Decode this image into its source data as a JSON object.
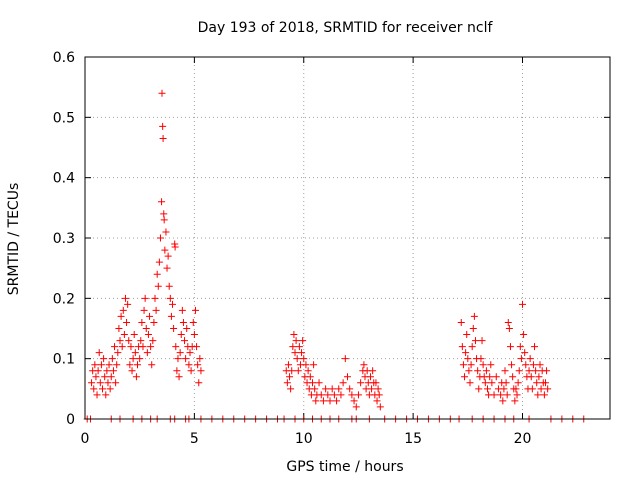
{
  "chart_data": {
    "type": "scatter",
    "title": "Day 193 of 2018, SRMTID for receiver nclf",
    "xlabel": "GPS time / hours",
    "ylabel": "SRMTID / TECUs",
    "xlim": [
      0,
      24
    ],
    "ylim": [
      0,
      0.6
    ],
    "xticks": [
      0,
      5,
      10,
      15,
      20
    ],
    "xtick_labels": [
      "0",
      "5",
      "10",
      "15",
      "20"
    ],
    "yticks": [
      0,
      0.1,
      0.2,
      0.3,
      0.4,
      0.5,
      0.6
    ],
    "ytick_labels": [
      "0",
      "0.1",
      "0.2",
      "0.3",
      "0.4",
      "0.5",
      "0.6"
    ],
    "grid": true,
    "marker": "+",
    "series": [
      {
        "name": "SRMTID",
        "color": "#ff0000",
        "points": [
          [
            0.1,
            0.0
          ],
          [
            0.25,
            0.0
          ],
          [
            1.2,
            0.0
          ],
          [
            1.6,
            0.0
          ],
          [
            2.2,
            0.0
          ],
          [
            2.6,
            0.0
          ],
          [
            3.0,
            0.0
          ],
          [
            3.3,
            0.0
          ],
          [
            3.9,
            0.0
          ],
          [
            4.1,
            0.0
          ],
          [
            4.6,
            0.0
          ],
          [
            4.75,
            0.0
          ],
          [
            5.3,
            0.0
          ],
          [
            5.8,
            0.0
          ],
          [
            6.3,
            0.0
          ],
          [
            6.8,
            0.0
          ],
          [
            7.3,
            0.0
          ],
          [
            7.8,
            0.0
          ],
          [
            8.3,
            0.0
          ],
          [
            8.8,
            0.0
          ],
          [
            9.1,
            0.0
          ],
          [
            9.6,
            0.0
          ],
          [
            10.0,
            0.0
          ],
          [
            10.4,
            0.0
          ],
          [
            10.8,
            0.0
          ],
          [
            11.2,
            0.0
          ],
          [
            11.6,
            0.0
          ],
          [
            12.2,
            0.0
          ],
          [
            12.4,
            0.0
          ],
          [
            13.0,
            0.0
          ],
          [
            13.7,
            0.0
          ],
          [
            14.2,
            0.0
          ],
          [
            14.7,
            0.0
          ],
          [
            15.2,
            0.0
          ],
          [
            15.7,
            0.0
          ],
          [
            16.2,
            0.0
          ],
          [
            16.7,
            0.0
          ],
          [
            17.1,
            0.0
          ],
          [
            17.7,
            0.0
          ],
          [
            18.2,
            0.0
          ],
          [
            18.7,
            0.0
          ],
          [
            19.2,
            0.0
          ],
          [
            19.6,
            0.0
          ],
          [
            20.3,
            0.0
          ],
          [
            21.3,
            0.0
          ],
          [
            21.8,
            0.0
          ],
          [
            22.3,
            0.0
          ],
          [
            22.8,
            0.0
          ],
          [
            0.3,
            0.06
          ],
          [
            0.35,
            0.08
          ],
          [
            0.4,
            0.05
          ],
          [
            0.45,
            0.09
          ],
          [
            0.5,
            0.07
          ],
          [
            0.55,
            0.04
          ],
          [
            0.6,
            0.08
          ],
          [
            0.65,
            0.11
          ],
          [
            0.7,
            0.06
          ],
          [
            0.75,
            0.09
          ],
          [
            0.8,
            0.05
          ],
          [
            0.85,
            0.1
          ],
          [
            0.9,
            0.07
          ],
          [
            0.95,
            0.04
          ],
          [
            1.0,
            0.08
          ],
          [
            1.05,
            0.06
          ],
          [
            1.1,
            0.09
          ],
          [
            1.15,
            0.05
          ],
          [
            1.2,
            0.07
          ],
          [
            1.25,
            0.1
          ],
          [
            1.3,
            0.08
          ],
          [
            1.35,
            0.12
          ],
          [
            1.4,
            0.06
          ],
          [
            1.45,
            0.09
          ],
          [
            1.5,
            0.11
          ],
          [
            1.55,
            0.15
          ],
          [
            1.6,
            0.13
          ],
          [
            1.65,
            0.17
          ],
          [
            1.7,
            0.12
          ],
          [
            1.75,
            0.18
          ],
          [
            1.8,
            0.14
          ],
          [
            1.85,
            0.2
          ],
          [
            1.9,
            0.16
          ],
          [
            1.95,
            0.19
          ],
          [
            2.0,
            0.13
          ],
          [
            2.05,
            0.09
          ],
          [
            2.1,
            0.12
          ],
          [
            2.15,
            0.08
          ],
          [
            2.2,
            0.1
          ],
          [
            2.25,
            0.14
          ],
          [
            2.3,
            0.11
          ],
          [
            2.35,
            0.07
          ],
          [
            2.4,
            0.09
          ],
          [
            2.45,
            0.12
          ],
          [
            2.5,
            0.1
          ],
          [
            2.55,
            0.13
          ],
          [
            2.6,
            0.16
          ],
          [
            2.65,
            0.12
          ],
          [
            2.7,
            0.18
          ],
          [
            2.75,
            0.2
          ],
          [
            2.8,
            0.15
          ],
          [
            2.85,
            0.11
          ],
          [
            2.9,
            0.14
          ],
          [
            2.95,
            0.17
          ],
          [
            3.0,
            0.12
          ],
          [
            3.05,
            0.09
          ],
          [
            3.1,
            0.13
          ],
          [
            3.15,
            0.16
          ],
          [
            3.2,
            0.2
          ],
          [
            3.25,
            0.18
          ],
          [
            3.3,
            0.24
          ],
          [
            3.35,
            0.22
          ],
          [
            3.4,
            0.26
          ],
          [
            3.45,
            0.3
          ],
          [
            3.5,
            0.36
          ],
          [
            3.52,
            0.54
          ],
          [
            3.55,
            0.485
          ],
          [
            3.57,
            0.465
          ],
          [
            3.6,
            0.34
          ],
          [
            3.62,
            0.33
          ],
          [
            3.65,
            0.28
          ],
          [
            3.7,
            0.31
          ],
          [
            3.75,
            0.25
          ],
          [
            3.8,
            0.27
          ],
          [
            3.85,
            0.22
          ],
          [
            3.9,
            0.2
          ],
          [
            3.95,
            0.17
          ],
          [
            4.0,
            0.19
          ],
          [
            4.05,
            0.15
          ],
          [
            4.1,
            0.29
          ],
          [
            4.12,
            0.285
          ],
          [
            4.15,
            0.12
          ],
          [
            4.2,
            0.08
          ],
          [
            4.25,
            0.1
          ],
          [
            4.3,
            0.07
          ],
          [
            4.35,
            0.11
          ],
          [
            4.4,
            0.14
          ],
          [
            4.45,
            0.18
          ],
          [
            4.5,
            0.16
          ],
          [
            4.55,
            0.13
          ],
          [
            4.6,
            0.1
          ],
          [
            4.65,
            0.15
          ],
          [
            4.7,
            0.12
          ],
          [
            4.75,
            0.09
          ],
          [
            4.8,
            0.11
          ],
          [
            4.85,
            0.08
          ],
          [
            4.9,
            0.12
          ],
          [
            4.95,
            0.16
          ],
          [
            5.0,
            0.14
          ],
          [
            5.05,
            0.18
          ],
          [
            5.1,
            0.12
          ],
          [
            5.15,
            0.09
          ],
          [
            5.2,
            0.06
          ],
          [
            5.25,
            0.1
          ],
          [
            5.3,
            0.08
          ],
          [
            9.2,
            0.08
          ],
          [
            9.25,
            0.06
          ],
          [
            9.3,
            0.09
          ],
          [
            9.35,
            0.07
          ],
          [
            9.4,
            0.05
          ],
          [
            9.45,
            0.08
          ],
          [
            9.5,
            0.12
          ],
          [
            9.55,
            0.14
          ],
          [
            9.6,
            0.11
          ],
          [
            9.65,
            0.13
          ],
          [
            9.7,
            0.1
          ],
          [
            9.75,
            0.08
          ],
          [
            9.8,
            0.12
          ],
          [
            9.85,
            0.09
          ],
          [
            9.9,
            0.11
          ],
          [
            9.95,
            0.13
          ],
          [
            10.0,
            0.1
          ],
          [
            10.05,
            0.07
          ],
          [
            10.1,
            0.09
          ],
          [
            10.15,
            0.06
          ],
          [
            10.2,
            0.08
          ],
          [
            10.25,
            0.05
          ],
          [
            10.3,
            0.07
          ],
          [
            10.35,
            0.04
          ],
          [
            10.4,
            0.06
          ],
          [
            10.45,
            0.09
          ],
          [
            10.5,
            0.05
          ],
          [
            10.55,
            0.03
          ],
          [
            10.6,
            0.04
          ],
          [
            10.7,
            0.06
          ],
          [
            10.8,
            0.04
          ],
          [
            10.9,
            0.03
          ],
          [
            11.0,
            0.05
          ],
          [
            11.1,
            0.04
          ],
          [
            11.2,
            0.03
          ],
          [
            11.3,
            0.05
          ],
          [
            11.4,
            0.04
          ],
          [
            11.5,
            0.03
          ],
          [
            11.6,
            0.05
          ],
          [
            11.7,
            0.04
          ],
          [
            11.8,
            0.06
          ],
          [
            11.9,
            0.1
          ],
          [
            12.0,
            0.07
          ],
          [
            12.1,
            0.05
          ],
          [
            12.2,
            0.04
          ],
          [
            12.3,
            0.03
          ],
          [
            12.4,
            0.02
          ],
          [
            12.5,
            0.04
          ],
          [
            12.6,
            0.06
          ],
          [
            12.7,
            0.08
          ],
          [
            12.75,
            0.09
          ],
          [
            12.8,
            0.07
          ],
          [
            12.85,
            0.05
          ],
          [
            12.9,
            0.08
          ],
          [
            12.95,
            0.06
          ],
          [
            13.0,
            0.04
          ],
          [
            13.05,
            0.07
          ],
          [
            13.1,
            0.05
          ],
          [
            13.15,
            0.08
          ],
          [
            13.2,
            0.06
          ],
          [
            13.25,
            0.04
          ],
          [
            13.3,
            0.06
          ],
          [
            13.35,
            0.03
          ],
          [
            13.4,
            0.05
          ],
          [
            13.45,
            0.04
          ],
          [
            13.5,
            0.02
          ],
          [
            17.2,
            0.16
          ],
          [
            17.25,
            0.12
          ],
          [
            17.3,
            0.09
          ],
          [
            17.35,
            0.07
          ],
          [
            17.4,
            0.11
          ],
          [
            17.45,
            0.14
          ],
          [
            17.5,
            0.1
          ],
          [
            17.55,
            0.08
          ],
          [
            17.6,
            0.06
          ],
          [
            17.65,
            0.09
          ],
          [
            17.7,
            0.12
          ],
          [
            17.75,
            0.15
          ],
          [
            17.8,
            0.17
          ],
          [
            17.85,
            0.13
          ],
          [
            17.9,
            0.1
          ],
          [
            17.95,
            0.08
          ],
          [
            18.0,
            0.05
          ],
          [
            18.05,
            0.07
          ],
          [
            18.1,
            0.1
          ],
          [
            18.15,
            0.13
          ],
          [
            18.2,
            0.09
          ],
          [
            18.25,
            0.07
          ],
          [
            18.3,
            0.06
          ],
          [
            18.35,
            0.08
          ],
          [
            18.4,
            0.05
          ],
          [
            18.45,
            0.04
          ],
          [
            18.5,
            0.07
          ],
          [
            18.55,
            0.09
          ],
          [
            18.6,
            0.06
          ],
          [
            18.7,
            0.04
          ],
          [
            18.8,
            0.07
          ],
          [
            18.9,
            0.05
          ],
          [
            19.0,
            0.04
          ],
          [
            19.05,
            0.06
          ],
          [
            19.1,
            0.03
          ],
          [
            19.15,
            0.05
          ],
          [
            19.2,
            0.08
          ],
          [
            19.25,
            0.06
          ],
          [
            19.3,
            0.04
          ],
          [
            19.35,
            0.16
          ],
          [
            19.4,
            0.15
          ],
          [
            19.45,
            0.12
          ],
          [
            19.5,
            0.09
          ],
          [
            19.55,
            0.07
          ],
          [
            19.6,
            0.05
          ],
          [
            19.65,
            0.03
          ],
          [
            19.7,
            0.05
          ],
          [
            19.75,
            0.04
          ],
          [
            19.8,
            0.06
          ],
          [
            19.85,
            0.08
          ],
          [
            19.9,
            0.12
          ],
          [
            19.95,
            0.1
          ],
          [
            20.0,
            0.19
          ],
          [
            20.05,
            0.14
          ],
          [
            20.1,
            0.11
          ],
          [
            20.15,
            0.09
          ],
          [
            20.2,
            0.07
          ],
          [
            20.25,
            0.05
          ],
          [
            20.3,
            0.08
          ],
          [
            20.35,
            0.1
          ],
          [
            20.4,
            0.07
          ],
          [
            20.45,
            0.05
          ],
          [
            20.5,
            0.09
          ],
          [
            20.55,
            0.12
          ],
          [
            20.6,
            0.08
          ],
          [
            20.65,
            0.06
          ],
          [
            20.7,
            0.04
          ],
          [
            20.75,
            0.07
          ],
          [
            20.8,
            0.09
          ],
          [
            20.85,
            0.05
          ],
          [
            20.9,
            0.08
          ],
          [
            20.95,
            0.06
          ],
          [
            21.0,
            0.04
          ],
          [
            21.05,
            0.06
          ],
          [
            21.1,
            0.08
          ],
          [
            21.15,
            0.05
          ]
        ]
      }
    ]
  }
}
